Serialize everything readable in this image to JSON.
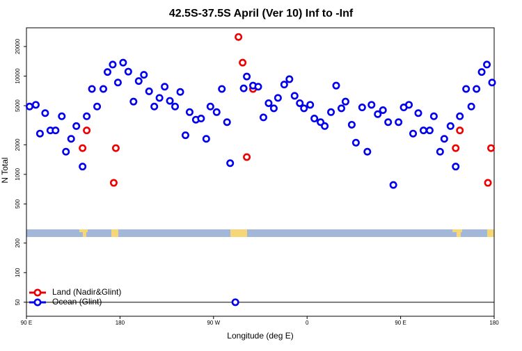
{
  "chart_data": {
    "type": "scatter",
    "title": "42.5S-37.5S April (Ver 10)   Inf to -Inf",
    "x_label": "Longitude (deg E)",
    "y_label": "N Total",
    "log_y": true,
    "legend": "bottomleft",
    "xlim": [
      90,
      540
    ],
    "ylim": [
      36,
      31000
    ],
    "xticks": [
      {
        "value": 90,
        "label": "90 E"
      },
      {
        "value": 180,
        "label": "180"
      },
      {
        "value": 270,
        "label": "90 W"
      },
      {
        "value": 360,
        "label": "0"
      },
      {
        "value": 450,
        "label": "90 E"
      },
      {
        "value": 540,
        "label": "180"
      }
    ],
    "yticks": [
      50,
      100,
      200,
      500,
      1000,
      2000,
      5000,
      10000,
      20000
    ],
    "series": [
      {
        "name": "Land (Nadir&Glint)",
        "color": "#ee0000",
        "x": [
          144,
          148,
          174,
          176,
          294,
          298,
          302,
          308,
          503,
          507,
          534,
          537
        ],
        "values": [
          1850,
          2800,
          820,
          1850,
          25000,
          13700,
          1500,
          7400,
          1850,
          2800,
          820,
          1850
        ]
      },
      {
        "name": "Ocean (Glint)",
        "color": "#0000ee",
        "x": [
          93,
          99,
          103,
          108,
          113,
          118,
          124,
          128,
          133,
          138,
          144,
          148,
          153,
          158,
          164,
          168,
          173,
          178,
          183,
          188,
          193,
          198,
          203,
          208,
          213,
          218,
          223,
          228,
          233,
          238,
          243,
          247,
          253,
          258,
          263,
          267,
          273,
          278,
          283,
          286,
          299,
          302,
          308,
          313,
          318,
          323,
          328,
          332,
          338,
          343,
          348,
          353,
          357,
          363,
          367,
          373,
          377,
          383,
          388,
          393,
          397,
          403,
          407,
          413,
          418,
          422,
          428,
          433,
          438,
          443,
          448,
          453,
          458,
          462,
          467,
          472,
          478,
          482,
          488,
          492,
          498,
          503,
          507,
          513,
          518,
          523,
          528,
          533,
          538,
          291
        ],
        "values": [
          4900,
          5100,
          2600,
          4200,
          2800,
          2800,
          3900,
          1700,
          2300,
          3100,
          1200,
          3900,
          7400,
          4900,
          7400,
          11000,
          13100,
          8600,
          13700,
          11100,
          5500,
          8900,
          10300,
          7000,
          4900,
          6000,
          7800,
          5600,
          4900,
          6900,
          2500,
          4300,
          3600,
          3700,
          2300,
          4900,
          4300,
          7400,
          3400,
          1300,
          7500,
          9900,
          8000,
          7800,
          3800,
          5300,
          4700,
          6000,
          8200,
          9300,
          6300,
          5300,
          4700,
          5100,
          3700,
          3400,
          3100,
          4300,
          8000,
          4700,
          5500,
          3200,
          2100,
          4800,
          1700,
          5100,
          4100,
          4500,
          3400,
          780,
          3400,
          4800,
          5100,
          2600,
          4200,
          2800,
          2800,
          3900,
          1700,
          2300,
          3100,
          1200,
          3900,
          7400,
          4900,
          7400,
          11000,
          13100,
          8600,
          50
        ]
      }
    ]
  }
}
